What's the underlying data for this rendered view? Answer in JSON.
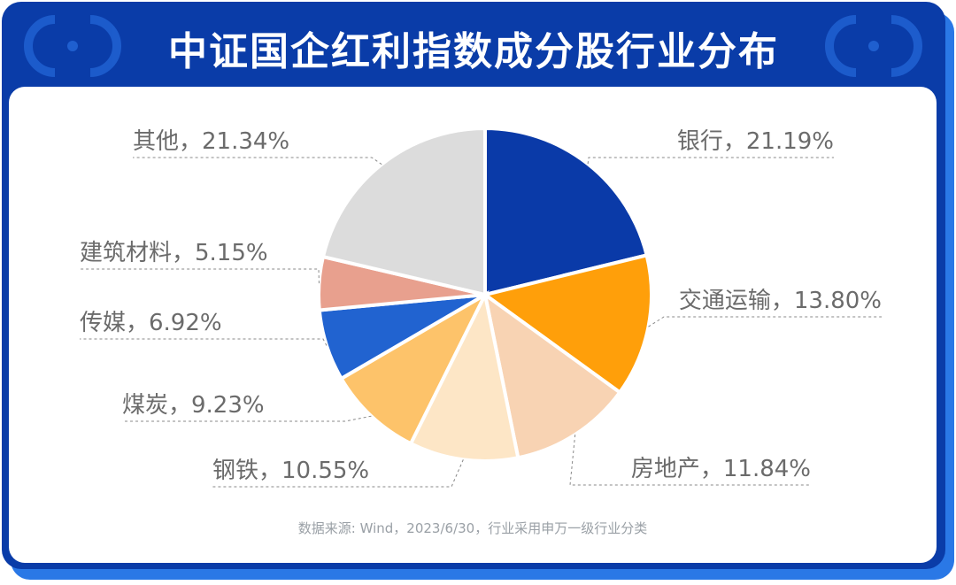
{
  "title": "中证国企红利指数成分股行业分布",
  "source_note": "数据来源: Wind，2023/6/30，行业采用申万一级行业分类",
  "colors": {
    "header_bg": "#0a3ca8",
    "shadow": "#2a78e6",
    "panel_bg": "#ffffff",
    "label_text": "#6b6b6b"
  },
  "chart_data": {
    "type": "pie",
    "title": "中证国企红利指数成分股行业分布",
    "unit": "%",
    "slices": [
      {
        "label": "银行",
        "value": 21.19,
        "display": "银行，21.19%",
        "color": "#0a3aa8"
      },
      {
        "label": "交通运输",
        "value": 13.8,
        "display": "交通运输，13.80%",
        "color": "#ff9f0a"
      },
      {
        "label": "房地产",
        "value": 11.84,
        "display": "房地产，11.84%",
        "color": "#f8d3b3"
      },
      {
        "label": "钢铁",
        "value": 10.55,
        "display": "钢铁，10.55%",
        "color": "#fde6c6"
      },
      {
        "label": "煤炭",
        "value": 9.23,
        "display": "煤炭，9.23%",
        "color": "#fdc36a"
      },
      {
        "label": "传媒",
        "value": 6.92,
        "display": "传媒，6.92%",
        "color": "#2163d0"
      },
      {
        "label": "建筑材料",
        "value": 5.15,
        "display": "建筑材料，5.15%",
        "color": "#e8a08e"
      },
      {
        "label": "其他",
        "value": 21.34,
        "display": "其他，21.34%",
        "color": "#dcdcdc"
      }
    ]
  }
}
